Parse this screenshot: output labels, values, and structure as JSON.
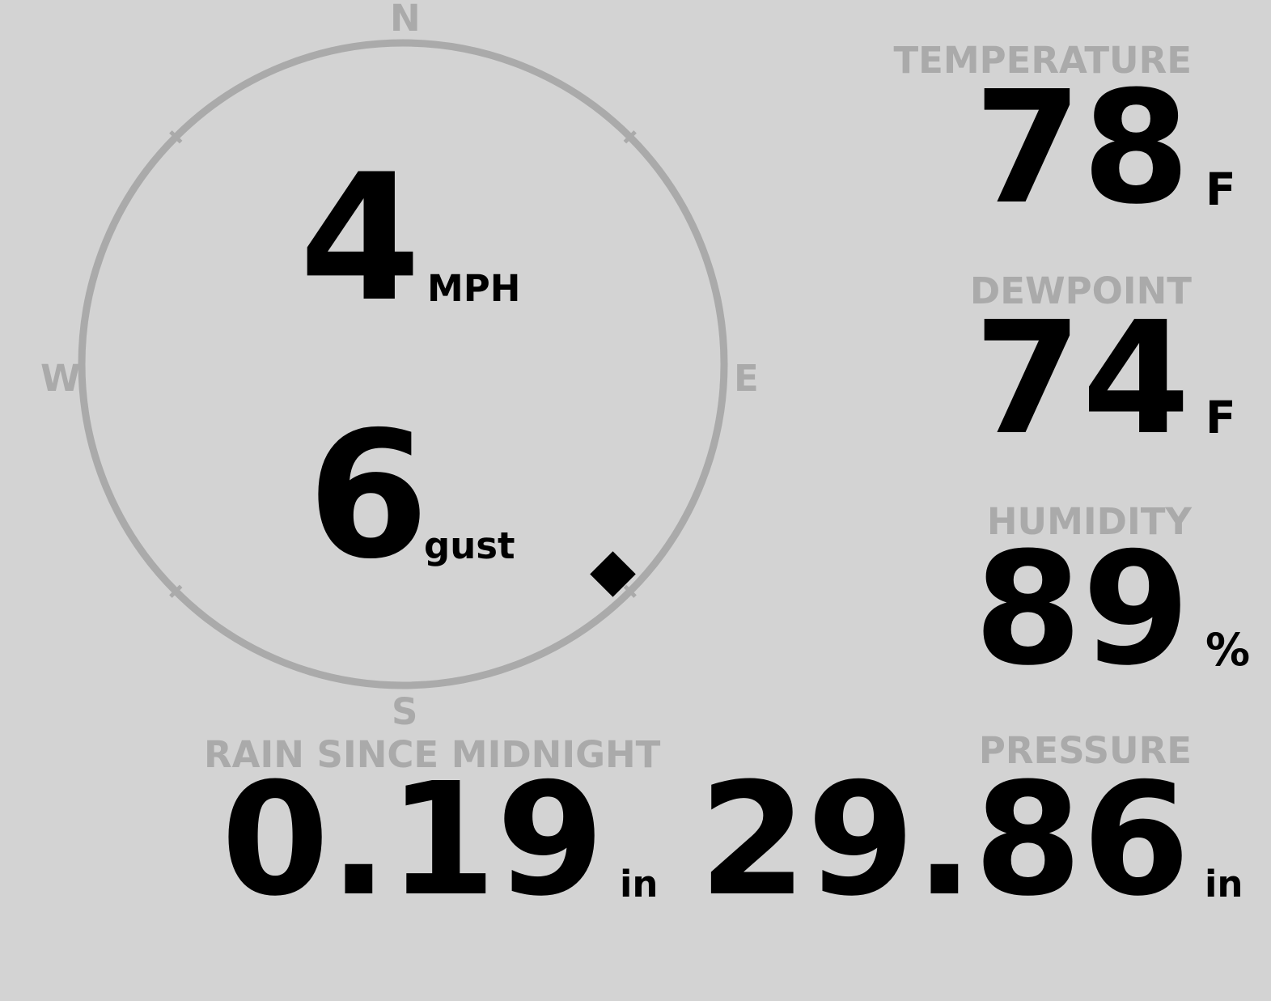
{
  "colors": {
    "background": "#d3d3d3",
    "label": "#aaaaaa",
    "value": "#000000",
    "compass_ring": "#aaaaaa",
    "wind_marker": "#000000"
  },
  "wind": {
    "speed": "4",
    "speed_unit": "MPH",
    "gust": "6",
    "gust_unit": "gust",
    "direction_deg": 135,
    "compass": {
      "n": "N",
      "e": "E",
      "s": "S",
      "w": "W"
    }
  },
  "temperature": {
    "label": "TEMPERATURE",
    "value": "78",
    "unit": "F"
  },
  "dewpoint": {
    "label": "DEWPOINT",
    "value": "74",
    "unit": "F"
  },
  "humidity": {
    "label": "HUMIDITY",
    "value": "89",
    "unit": "%"
  },
  "pressure": {
    "label": "PRESSURE",
    "value": "29.86",
    "unit": "in"
  },
  "rain": {
    "label": "RAIN SINCE MIDNIGHT",
    "value": "0.19",
    "unit": "in"
  }
}
